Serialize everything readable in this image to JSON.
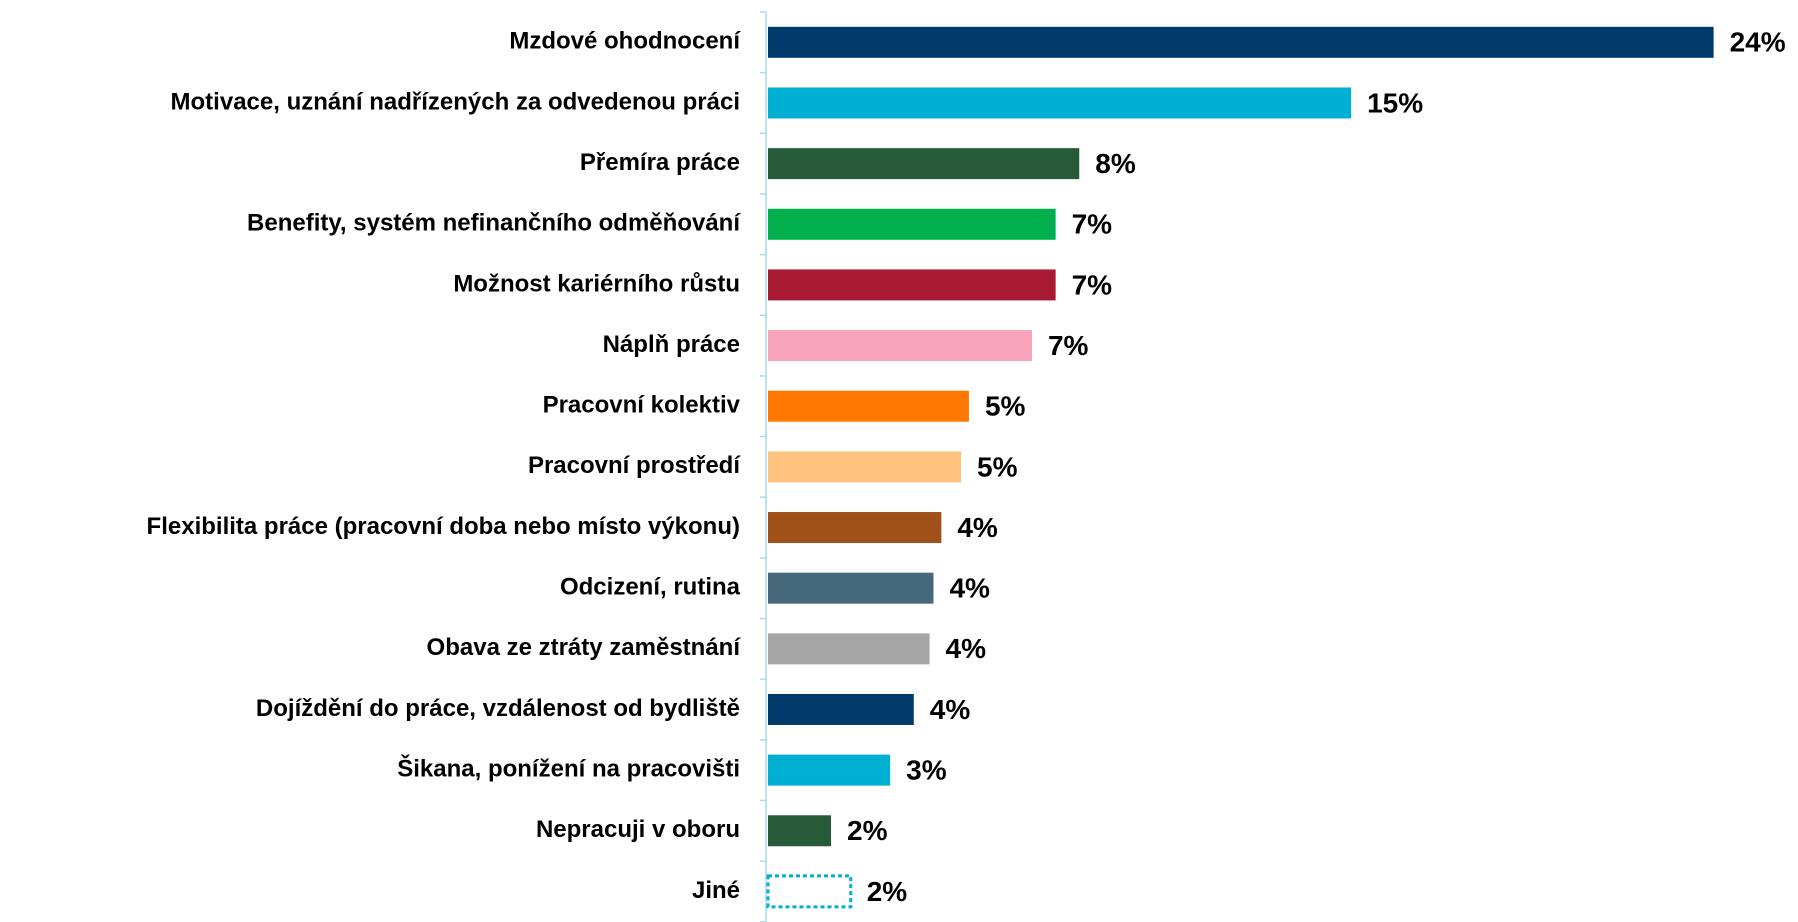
{
  "chart_data": {
    "type": "bar",
    "orientation": "horizontal",
    "categories": [
      "Mzdové ohodnocení",
      "Motivace, uznání nadřízených za odvedenou práci",
      "Přemíra práce",
      "Benefity, systém nefinančního odměňování",
      "Možnost kariérního růstu",
      "Náplň práce",
      "Pracovní kolektiv",
      "Pracovní prostředí",
      "Flexibilita práce (pracovní doba nebo místo výkonu)",
      "Odcizení, rutina",
      "Obava ze ztráty zaměstnání",
      "Dojíždění do práce, vzdálenost od bydliště",
      "Šikana, ponížení na pracovišti",
      "Nepracuji v oboru",
      "Jiné"
    ],
    "values": [
      24,
      14.8,
      7.9,
      7.3,
      7.3,
      6.7,
      5.1,
      4.9,
      4.4,
      4.2,
      4.1,
      3.7,
      3.1,
      1.6,
      2.1
    ],
    "value_labels": [
      "24%",
      "15%",
      "8%",
      "7%",
      "7%",
      "7%",
      "5%",
      "5%",
      "4%",
      "4%",
      "4%",
      "4%",
      "3%",
      "2%",
      "2%"
    ],
    "colors": [
      "#003b6b",
      "#00afd2",
      "#275b37",
      "#00b04c",
      "#a81a32",
      "#f7a3bb",
      "#ff7700",
      "#fdc37e",
      "#9f5119",
      "#46687b",
      "#a6a6a6",
      "#003b6b",
      "#00afd2",
      "#275b37",
      "none"
    ],
    "outline_colors": [
      null,
      null,
      null,
      null,
      null,
      null,
      null,
      null,
      null,
      null,
      null,
      null,
      null,
      null,
      "#00afd2"
    ]
  }
}
